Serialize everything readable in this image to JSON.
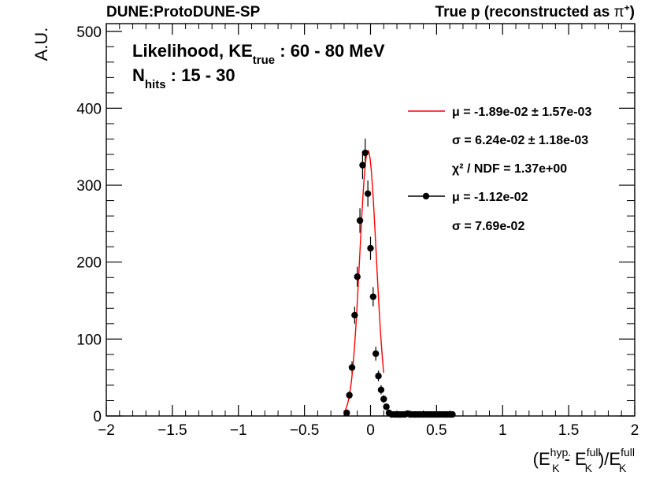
{
  "header": {
    "left": "DUNE:ProtoDUNE-SP",
    "right_main": "True p (reconstructed as ",
    "right_symbol": "π",
    "right_sup": "+",
    "right_close": ")"
  },
  "annotation": {
    "line1_a": "Likelihood, KE",
    "line1_sub": "true",
    "line1_b": " : 60 - 80 MeV",
    "line2_a": "N",
    "line2_sub": "hits",
    "line2_b": " : 15 - 30"
  },
  "legend": {
    "fit_mu": "μ = -1.89e-02 ± 1.57e-03",
    "fit_sigma": "σ = 6.24e-02 ± 1.18e-03",
    "fit_chi2": "χ² / NDF = 1.37e+00",
    "data_mu": "μ = -1.12e-02",
    "data_sigma": "σ = 7.69e-02"
  },
  "axes": {
    "ylabel": "A.U.",
    "xlabel_parts": {
      "open": "(E",
      "sup1": "hyp.",
      "sub1": "K",
      "minus": " - E",
      "sup2": "full",
      "sub2": "K",
      "div": ")/E",
      "sup3": "full",
      "sub3": "K"
    }
  },
  "colors": {
    "fit": "#ff0000",
    "data": "#000000"
  },
  "chart_data": {
    "type": "scatter",
    "xlim": [
      -2,
      2
    ],
    "ylim": [
      0,
      510
    ],
    "xticks": [
      -2,
      -1.5,
      -1,
      -0.5,
      0,
      0.5,
      1,
      1.5,
      2
    ],
    "xtick_labels": [
      "−2",
      "−1.5",
      "−1",
      "−0.5",
      "0",
      "0.5",
      "1",
      "1.5",
      "2"
    ],
    "yticks": [
      0,
      100,
      200,
      300,
      400,
      500
    ],
    "ytick_labels": [
      "0",
      "100",
      "200",
      "300",
      "400",
      "500"
    ],
    "series": [
      {
        "kind": "points",
        "x": [
          -0.18,
          -0.16,
          -0.14,
          -0.12,
          -0.1,
          -0.08,
          -0.06,
          -0.04,
          -0.02,
          0.0,
          0.02,
          0.04,
          0.06,
          0.08,
          0.1,
          0.12,
          0.14,
          0.16,
          0.18,
          0.2,
          0.22,
          0.24,
          0.26,
          0.28,
          0.3,
          0.32,
          0.34,
          0.36,
          0.38,
          0.4,
          0.42,
          0.44,
          0.46,
          0.48,
          0.5,
          0.52,
          0.54,
          0.56,
          0.58,
          0.6,
          0.62
        ],
        "y": [
          4,
          27,
          63,
          131,
          181,
          254,
          326,
          342,
          289,
          218,
          155,
          81,
          52,
          34,
          22,
          12,
          4,
          2,
          2,
          2,
          2,
          2,
          2,
          3,
          2,
          2,
          2,
          2,
          2,
          2,
          2,
          2,
          2,
          2,
          2,
          2,
          2,
          2,
          2,
          2,
          2
        ],
        "yerr": [
          2,
          5,
          8,
          11,
          13,
          16,
          18,
          18.5,
          17,
          15,
          12.5,
          9,
          7,
          6,
          5,
          3.5,
          2,
          1.4,
          1.4,
          1.4,
          1.4,
          1.4,
          1.4,
          1.7,
          1.4,
          1.4,
          1.4,
          1.4,
          1.4,
          1.4,
          1.4,
          1.4,
          1.4,
          1.4,
          1.4,
          1.4,
          1.4,
          1.4,
          1.4,
          1.4,
          1.4
        ]
      },
      {
        "kind": "gaussian-fit",
        "amplitude": 345,
        "mean": -0.0189,
        "sigma": 0.0624,
        "range": [
          -0.2,
          0.1
        ]
      }
    ]
  }
}
